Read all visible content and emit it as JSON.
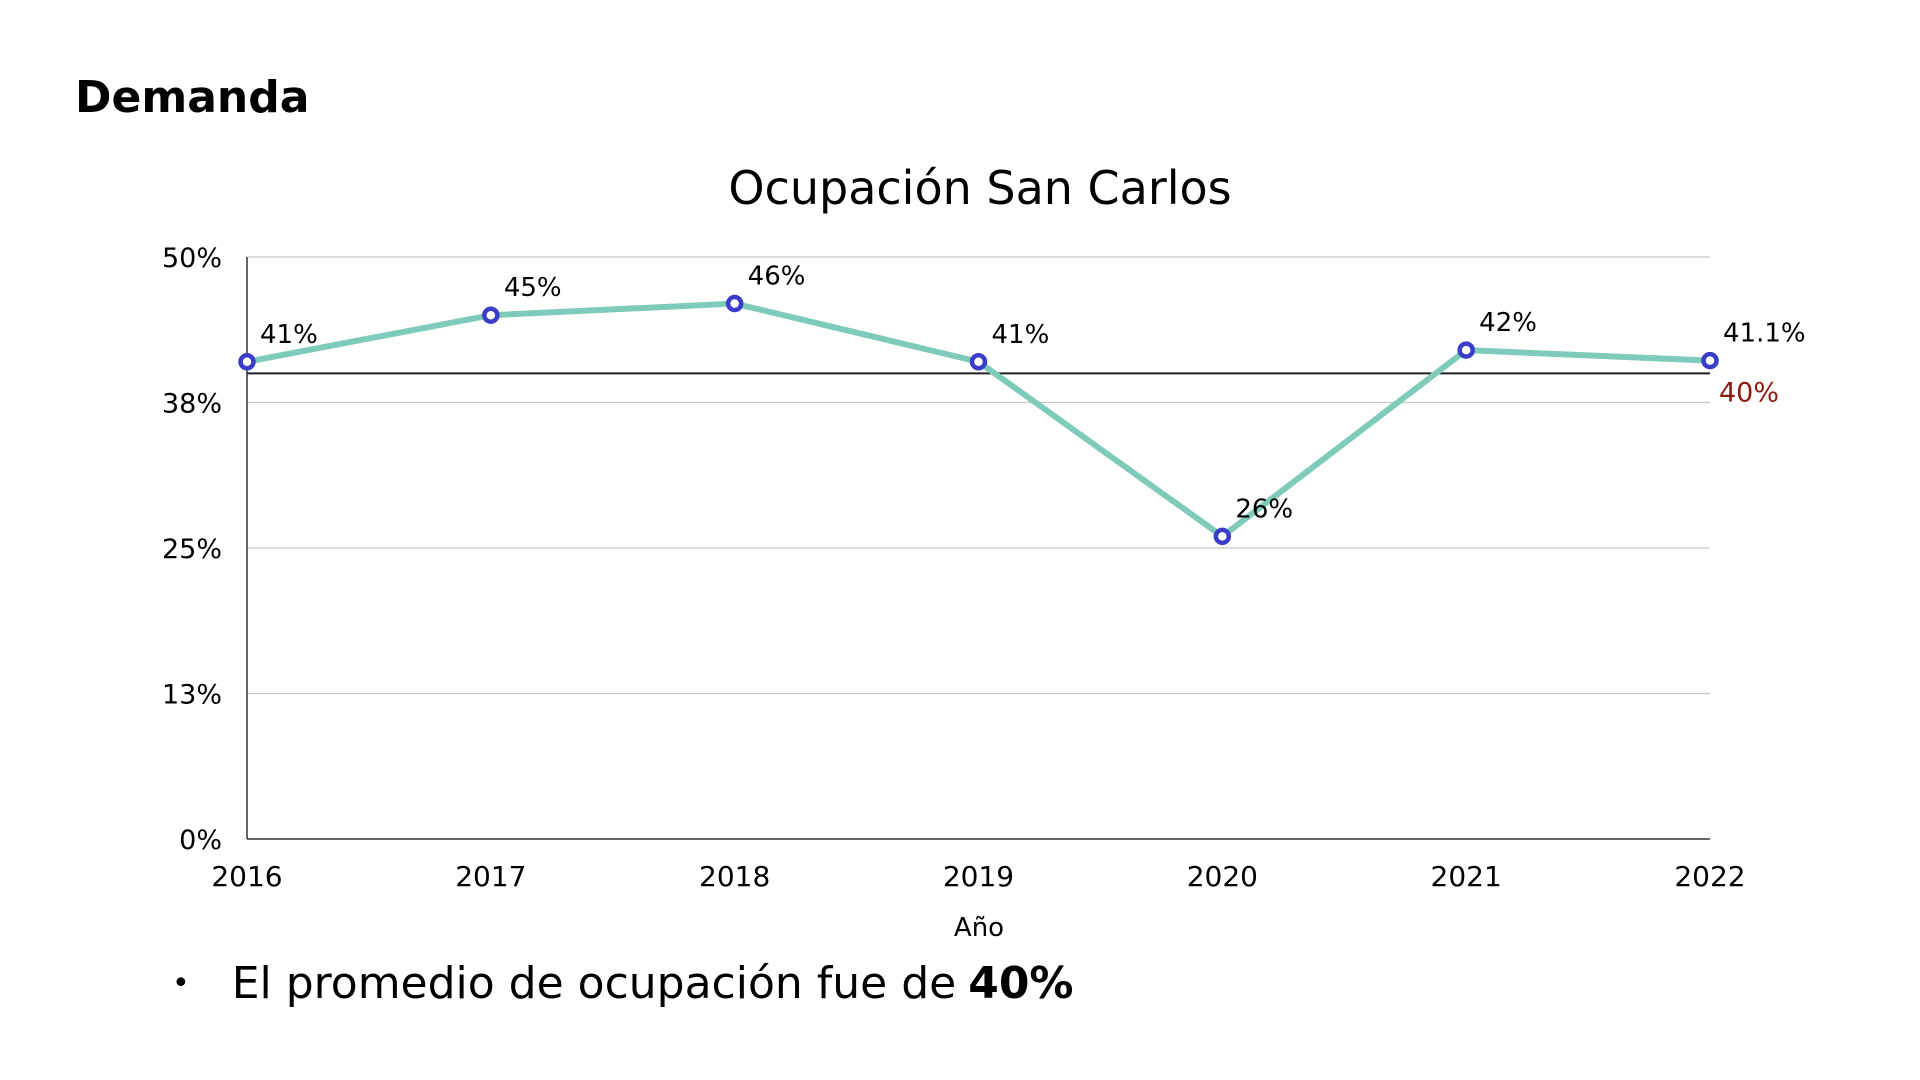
{
  "heading": "Demanda",
  "chart_data": {
    "type": "line",
    "title": "Ocupación San Carlos",
    "xlabel": "Año",
    "ylabel": "",
    "categories": [
      "2016",
      "2017",
      "2018",
      "2019",
      "2020",
      "2021",
      "2022"
    ],
    "series": [
      {
        "values": [
          41,
          45,
          46,
          41,
          26,
          42,
          41.1
        ],
        "labels": [
          "41%",
          "45%",
          "46%",
          "41%",
          "26%",
          "42%",
          "41.1%"
        ],
        "color": "#7ecbb9",
        "marker_color": "#3b3dc9"
      }
    ],
    "reference_line": {
      "value": 40,
      "label": "40%",
      "label_color": "#8b1a10",
      "color": "#222222"
    },
    "ylim": [
      0,
      50
    ],
    "yticks": [
      0,
      12.5,
      25,
      37.5,
      50
    ],
    "ytick_labels": [
      "0%",
      "13%",
      "25%",
      "38%",
      "50%"
    ],
    "grid": true,
    "legend": "none"
  },
  "bullet": {
    "text": "El promedio de ocupación fue de",
    "bold": "40%"
  }
}
